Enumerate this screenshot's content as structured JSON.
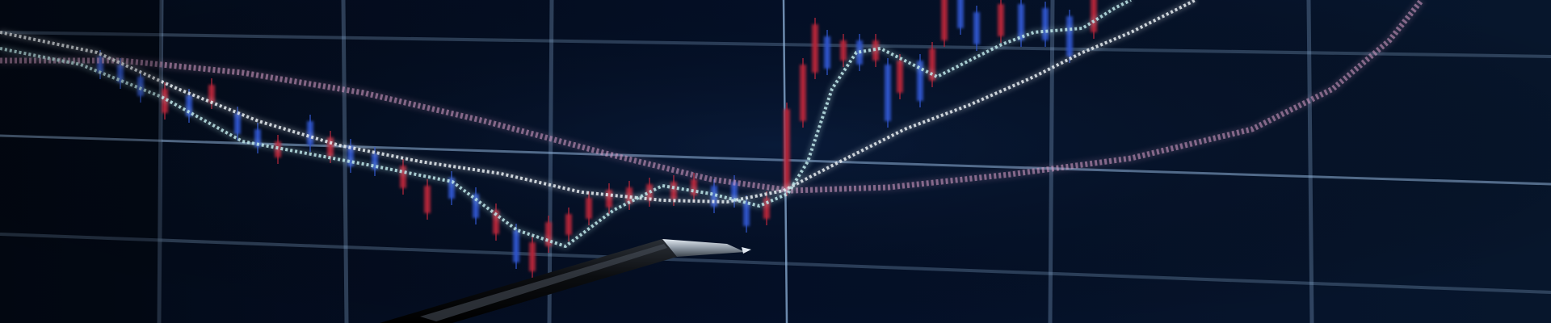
{
  "scene": {
    "subject": "stock-chart-monitor-with-pen",
    "colors": {
      "background": "#02060f",
      "grid": "#8fb3d9",
      "candle_up": "#2f54c9",
      "candle_down": "#b3263a",
      "ma_fast": "#bfe7ea",
      "ma_slow": "#e9eef2",
      "ma_long": "#d9a0c8",
      "pen_body": "#0b0d10",
      "pen_tip": "#b9c2cc"
    },
    "icons": [
      "pen-icon"
    ]
  }
}
